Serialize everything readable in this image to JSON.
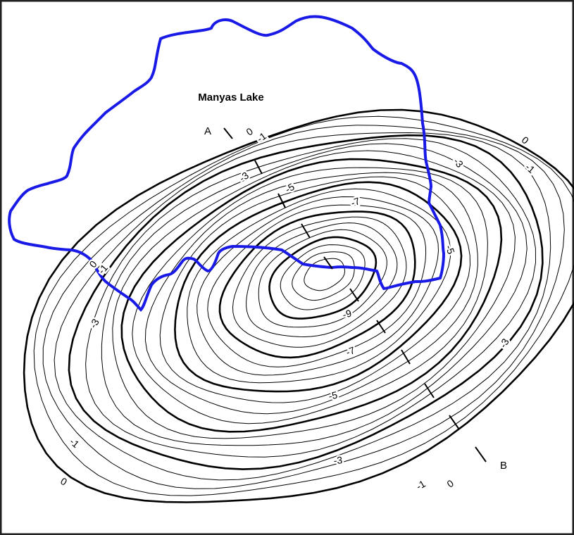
{
  "map": {
    "title": "Manyas Lake",
    "profile_start": "A",
    "profile_end": "B",
    "contour_labels": [
      0,
      -1,
      -3,
      -5,
      -7,
      0,
      -1,
      -3,
      -9,
      -7,
      -5,
      -3,
      -1,
      0,
      -1,
      0,
      -3,
      -5,
      -3,
      -1,
      0
    ]
  }
}
